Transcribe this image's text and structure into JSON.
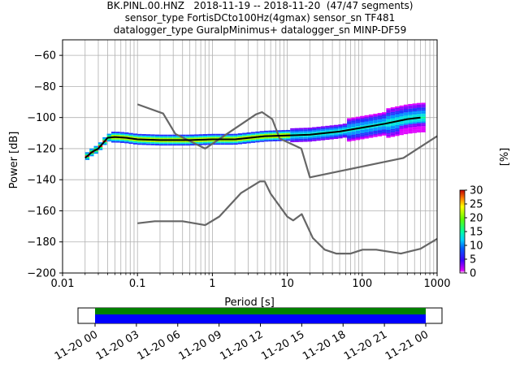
{
  "title_lines": [
    "BK.PINL.00.HNZ   2018-11-19 -- 2018-11-20  (47/47 segments)",
    "sensor_type FortisDCto100Hz(4gmax) sensor_sn TF481",
    "datalogger_type GuralpMinimus+ datalogger_sn MINP-DF59"
  ],
  "chart_data": {
    "type": "heatmap",
    "xlabel": "Period [s]",
    "ylabel": "Power [dB]",
    "x_scale": "log",
    "xlim": [
      0.01,
      1000
    ],
    "ylim": [
      -200,
      -50
    ],
    "x_ticks": [
      0.01,
      0.1,
      1,
      10,
      100,
      1000
    ],
    "x_tick_labels": [
      "0.01",
      "0.1",
      "1",
      "10",
      "100",
      "1000"
    ],
    "y_ticks": [
      -200,
      -180,
      -160,
      -140,
      -120,
      -100,
      -80,
      -60
    ],
    "y_tick_labels": [
      "−200",
      "−180",
      "−160",
      "−140",
      "−120",
      "−100",
      "−80",
      "−60"
    ],
    "grid": true,
    "colorbar": {
      "label": "[%]",
      "range": [
        0,
        30
      ],
      "ticks": [
        0,
        5,
        10,
        15,
        20,
        25,
        30
      ]
    },
    "nhnm_curve": {
      "period": [
        0.1,
        0.22,
        0.32,
        0.8,
        3.8,
        4.6,
        6.3,
        7.9,
        15.4,
        20,
        354.8,
        1000
      ],
      "power": [
        -91.5,
        -97.4,
        -110.5,
        -120,
        -98,
        -96.5,
        -101,
        -113.5,
        -120,
        -138.5,
        -126,
        -112
      ]
    },
    "nlnm_curve": {
      "period": [
        0.1,
        0.17,
        0.4,
        0.8,
        1.24,
        2.4,
        4.3,
        5,
        6,
        10,
        12,
        15.6,
        21.9,
        31.6,
        45,
        70,
        101,
        154,
        328,
        600,
        1000
      ],
      "power": [
        -168,
        -166.7,
        -166.7,
        -169.2,
        -163.7,
        -148.6,
        -141.1,
        -141.1,
        -149,
        -163.8,
        -166.2,
        -162.1,
        -177.5,
        -185,
        -187.5,
        -187.5,
        -185,
        -185,
        -187.5,
        -184.4,
        -178
      ]
    },
    "mean_curve": {
      "period": [
        0.02,
        0.025,
        0.03,
        0.04,
        0.05,
        0.07,
        0.1,
        0.2,
        0.5,
        1,
        2,
        5,
        10,
        20,
        50,
        100,
        200,
        400,
        600
      ],
      "power": [
        -126,
        -122,
        -120,
        -113,
        -112.5,
        -113,
        -114,
        -114.5,
        -114.5,
        -114,
        -114,
        -112,
        -111.5,
        -111,
        -109,
        -106.5,
        -104,
        -101,
        -100
      ]
    },
    "time_axis": {
      "tick_labels": [
        "11-20 00",
        "11-20 03",
        "11-20 06",
        "11-20 09",
        "11-20 12",
        "11-20 15",
        "11-20 18",
        "11-20 21",
        "11-21 00"
      ],
      "coverage_start": "11-20 00",
      "coverage_end": "11-21 00"
    },
    "colors": {
      "noise_model": "#666666",
      "mean": "#000000",
      "grid": "#b0b0b0",
      "coverage_green": "#008000",
      "coverage_blue": "#0000ff"
    }
  }
}
